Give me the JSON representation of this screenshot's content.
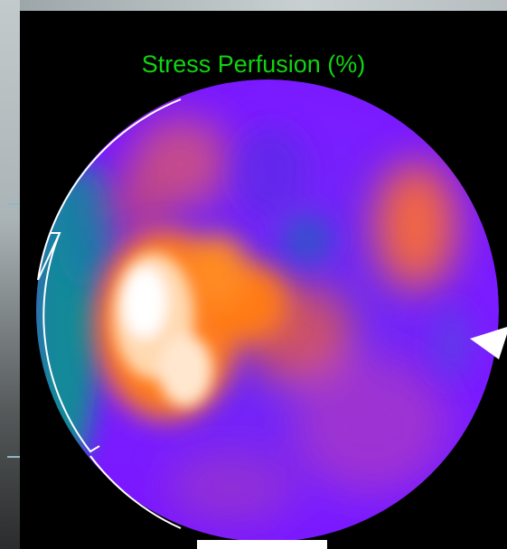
{
  "display": {
    "title": "Stress Perfusion (%)"
  },
  "colors": {
    "background": "#000000",
    "title": "#11d411",
    "low_perfusion": "#7a1cff",
    "mid_perfusion": "#ff7a1a",
    "high_perfusion": "#ffffff",
    "defect_rim": "#0e8a8a"
  },
  "icons": {
    "pointer": "arrow-pointer-icon"
  }
}
